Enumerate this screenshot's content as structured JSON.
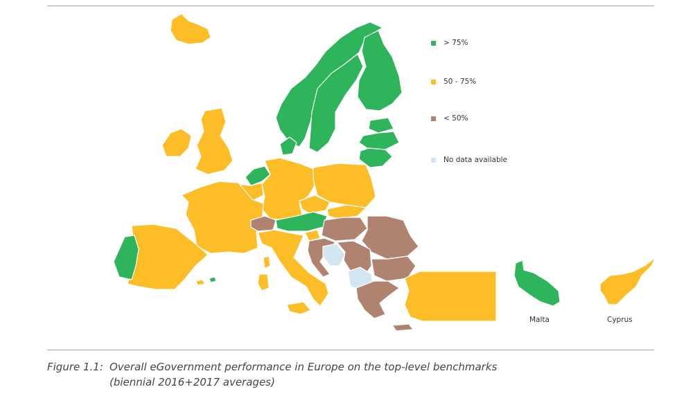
{
  "colors": {
    "high": "#2eb45a",
    "mid": "#fdbd26",
    "low": "#b08370",
    "nodata": "#d4e5f2",
    "rule": "#8fa6bd"
  },
  "legend": [
    {
      "label": "> 75%",
      "color": "#2eb45a"
    },
    {
      "label": "50 - 75%",
      "color": "#fdbd26"
    },
    {
      "label": "< 50%",
      "color": "#b08370"
    },
    {
      "label": "No data available",
      "color": "#d4e5f2"
    }
  ],
  "insets": {
    "malta": "Malta",
    "cyprus": "Cyprus"
  },
  "caption": {
    "figure": "Figure 1.1:",
    "line1": "Overall eGovernment performance in Europe on the top-level benchmarks",
    "line2": "(biennial 2016+2017 averages)"
  }
}
